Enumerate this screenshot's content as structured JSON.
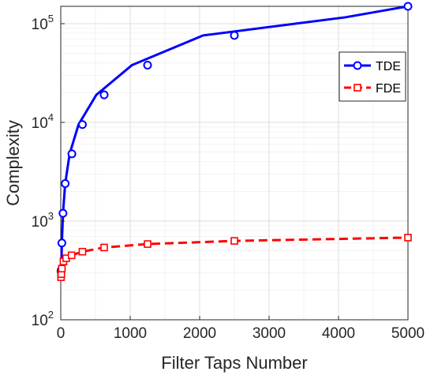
{
  "chart_data": {
    "type": "line",
    "title": "",
    "xlabel": "Filter Taps Number",
    "ylabel": "Complexity",
    "xlim": [
      0,
      5000
    ],
    "ylim": [
      100,
      150000
    ],
    "yscale": "log",
    "grid": true,
    "legend_position": "top-right",
    "x_ticks": [
      "0",
      "1000",
      "2000",
      "3000",
      "4000",
      "5000"
    ],
    "y_ticks": [
      {
        "base": "10",
        "exp": "2",
        "value": 100
      },
      {
        "base": "10",
        "exp": "3",
        "value": 1000
      },
      {
        "base": "10",
        "exp": "4",
        "value": 10000
      },
      {
        "base": "10",
        "exp": "5",
        "value": 100000
      }
    ],
    "series": [
      {
        "name": "TDE",
        "color": "#0000ff",
        "line_style": "solid",
        "marker": "circle",
        "x": [
          4,
          8,
          16,
          32,
          64,
          128,
          256,
          512,
          1024,
          2048,
          4096,
          5000
        ],
        "y": [
          310,
          320,
          600,
          1200,
          2400,
          4800,
          9500,
          19000,
          38000,
          76000,
          116000,
          150000
        ],
        "marker_x": [
          4,
          8,
          16,
          32,
          64,
          160,
          312,
          625,
          1250,
          2500,
          5000
        ],
        "marker_y": [
          310,
          320,
          600,
          1200,
          2400,
          4800,
          9500,
          19000,
          38000,
          76000,
          150000
        ]
      },
      {
        "name": "FDE",
        "color": "#ff0000",
        "line_style": "dashed",
        "marker": "square",
        "x": [
          4,
          8,
          16,
          39,
          78,
          156,
          312,
          625,
          1250,
          2500,
          5000
        ],
        "y": [
          270,
          290,
          330,
          390,
          420,
          450,
          490,
          540,
          585,
          630,
          680
        ]
      }
    ]
  }
}
